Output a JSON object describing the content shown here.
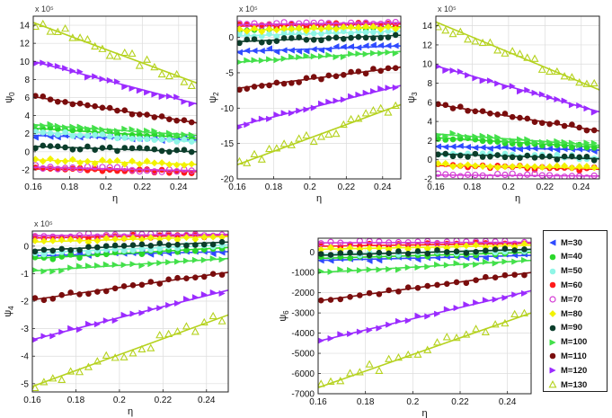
{
  "figure": {
    "panel_titles_note": "five panels of psi vs eta with fitted lines",
    "legend": [
      "M=30",
      "M=40",
      "M=50",
      "M=60",
      "M=70",
      "M=80",
      "M=90",
      "M=100",
      "M=110",
      "M=120",
      "M=130"
    ]
  },
  "series_style": [
    {
      "name": "M=30",
      "color": "#2f4bff",
      "marker": "tri-left"
    },
    {
      "name": "M=40",
      "color": "#2bd72b",
      "marker": "circle"
    },
    {
      "name": "M=50",
      "color": "#8ff5e6",
      "marker": "circle"
    },
    {
      "name": "M=60",
      "color": "#ff1a1a",
      "marker": "circle"
    },
    {
      "name": "M=70",
      "color": "#d43ad4",
      "marker": "open-circle"
    },
    {
      "name": "M=80",
      "color": "#f2f200",
      "marker": "diamond"
    },
    {
      "name": "M=90",
      "color": "#0b3d2b",
      "marker": "circle"
    },
    {
      "name": "M=100",
      "color": "#43e04a",
      "marker": "tri-right"
    },
    {
      "name": "M=110",
      "color": "#7a0d0d",
      "marker": "circle"
    },
    {
      "name": "M=120",
      "color": "#9b2bff",
      "marker": "tri-right"
    },
    {
      "name": "M=130",
      "color": "#b5d21e",
      "marker": "open-tri-up"
    }
  ],
  "chart_data": [
    {
      "type": "scatter",
      "id": "psi0",
      "ylabel": "ψ₀",
      "ylabel_base": "ψ",
      "ylabel_sub": "0",
      "xlabel": "η",
      "exponent_label": "x 10⁵",
      "xlim": [
        0.16,
        0.25
      ],
      "ylim": [
        -3,
        15
      ],
      "xticks": [
        0.16,
        0.18,
        0.2,
        0.22,
        0.24
      ],
      "xtick_labels": [
        "0.16",
        "0.18",
        "0.2",
        "0.22",
        "0.24"
      ],
      "yticks": [
        -2,
        0,
        2,
        4,
        6,
        8,
        10,
        12,
        14
      ],
      "ytick_labels": [
        "-2",
        "0",
        "2",
        "4",
        "6",
        "8",
        "10",
        "12",
        "14"
      ],
      "series": [
        {
          "name": "M=30",
          "fit": [
            1.8,
            1.3
          ]
        },
        {
          "name": "M=40",
          "fit": [
            2.6,
            1.5
          ]
        },
        {
          "name": "M=50",
          "fit": [
            2.2,
            1.1
          ]
        },
        {
          "name": "M=60",
          "fit": [
            -1.9,
            -2.2
          ]
        },
        {
          "name": "M=70",
          "fit": [
            -1.7,
            -2.1
          ]
        },
        {
          "name": "M=80",
          "fit": [
            -0.9,
            -1.4
          ]
        },
        {
          "name": "M=90",
          "fit": [
            0.6,
            0.0
          ]
        },
        {
          "name": "M=100",
          "fit": [
            3.0,
            1.8
          ]
        },
        {
          "name": "M=110",
          "fit": [
            6.1,
            3.2
          ]
        },
        {
          "name": "M=120",
          "fit": [
            10.0,
            5.3
          ]
        },
        {
          "name": "M=130",
          "fit": [
            14.3,
            7.6
          ]
        }
      ]
    },
    {
      "type": "scatter",
      "id": "psi2",
      "ylabel": "ψ₂",
      "ylabel_base": "ψ",
      "ylabel_sub": "2",
      "xlabel": "η",
      "exponent_label": "x 10⁵",
      "xlim": [
        0.16,
        0.25
      ],
      "ylim": [
        -20,
        3
      ],
      "xticks": [
        0.16,
        0.18,
        0.2,
        0.22,
        0.24
      ],
      "xtick_labels": [
        "0.16",
        "0.18",
        "0.2",
        "0.22",
        "0.24"
      ],
      "yticks": [
        -20,
        -15,
        -10,
        -5,
        0
      ],
      "ytick_labels": [
        "-20",
        "-15",
        "-10",
        "-5",
        "0"
      ],
      "series": [
        {
          "name": "M=30",
          "fit": [
            -2.0,
            -1.2
          ]
        },
        {
          "name": "M=40",
          "fit": [
            1.0,
            1.5
          ]
        },
        {
          "name": "M=50",
          "fit": [
            0.2,
            0.9
          ]
        },
        {
          "name": "M=60",
          "fit": [
            1.6,
            1.9
          ]
        },
        {
          "name": "M=70",
          "fit": [
            1.8,
            2.1
          ]
        },
        {
          "name": "M=80",
          "fit": [
            1.0,
            1.4
          ]
        },
        {
          "name": "M=90",
          "fit": [
            -0.6,
            0.3
          ]
        },
        {
          "name": "M=100",
          "fit": [
            -3.5,
            -2.0
          ]
        },
        {
          "name": "M=110",
          "fit": [
            -7.2,
            -4.2
          ]
        },
        {
          "name": "M=120",
          "fit": [
            -12.5,
            -6.8
          ]
        },
        {
          "name": "M=130",
          "fit": [
            -18.0,
            -9.5
          ]
        }
      ]
    },
    {
      "type": "scatter",
      "id": "psi3",
      "ylabel": "ψ₃",
      "ylabel_base": "ψ",
      "ylabel_sub": "3",
      "xlabel": "η",
      "exponent_label": "x 10⁵",
      "xlim": [
        0.16,
        0.25
      ],
      "ylim": [
        -2,
        15
      ],
      "xticks": [
        0.16,
        0.18,
        0.2,
        0.22,
        0.24
      ],
      "xtick_labels": [
        "0.16",
        "0.18",
        "0.2",
        "0.22",
        "0.24"
      ],
      "yticks": [
        -2,
        0,
        2,
        4,
        6,
        8,
        10,
        12,
        14
      ],
      "ytick_labels": [
        "-2",
        "0",
        "2",
        "4",
        "6",
        "8",
        "10",
        "12",
        "14"
      ],
      "series": [
        {
          "name": "M=30",
          "fit": [
            1.4,
            1.0
          ]
        },
        {
          "name": "M=40",
          "fit": [
            2.3,
            1.3
          ]
        },
        {
          "name": "M=50",
          "fit": [
            0.7,
            0.2
          ]
        },
        {
          "name": "M=60",
          "fit": [
            -0.6,
            -1.0
          ]
        },
        {
          "name": "M=70",
          "fit": [
            -1.6,
            -1.7
          ]
        },
        {
          "name": "M=80",
          "fit": [
            -0.5,
            -0.9
          ]
        },
        {
          "name": "M=90",
          "fit": [
            0.6,
            0.1
          ]
        },
        {
          "name": "M=100",
          "fit": [
            2.7,
            1.5
          ]
        },
        {
          "name": "M=110",
          "fit": [
            5.8,
            3.0
          ]
        },
        {
          "name": "M=120",
          "fit": [
            9.8,
            5.0
          ]
        },
        {
          "name": "M=130",
          "fit": [
            14.4,
            7.3
          ]
        }
      ]
    },
    {
      "type": "scatter",
      "id": "psi4",
      "ylabel": "ψ₄",
      "ylabel_base": "ψ",
      "ylabel_sub": "4",
      "xlabel": "η",
      "exponent_label": "x 10⁵",
      "xlim": [
        0.16,
        0.25
      ],
      "ylim": [
        -5.3,
        0.55
      ],
      "xticks": [
        0.16,
        0.18,
        0.2,
        0.22,
        0.24
      ],
      "xtick_labels": [
        "0.16",
        "0.18",
        "0.2",
        "0.22",
        "0.24"
      ],
      "yticks": [
        -5,
        -4,
        -3,
        -2,
        -1,
        0
      ],
      "ytick_labels": [
        "-5",
        "-4",
        "-3",
        "-2",
        "-1",
        "0"
      ],
      "series": [
        {
          "name": "M=30",
          "fit": [
            -0.35,
            -0.2
          ]
        },
        {
          "name": "M=40",
          "fit": [
            -0.45,
            -0.05
          ]
        },
        {
          "name": "M=50",
          "fit": [
            -0.25,
            0.05
          ]
        },
        {
          "name": "M=60",
          "fit": [
            0.3,
            0.4
          ]
        },
        {
          "name": "M=70",
          "fit": [
            0.38,
            0.43
          ]
        },
        {
          "name": "M=80",
          "fit": [
            0.15,
            0.35
          ]
        },
        {
          "name": "M=90",
          "fit": [
            -0.15,
            0.15
          ]
        },
        {
          "name": "M=100",
          "fit": [
            -0.9,
            -0.45
          ]
        },
        {
          "name": "M=110",
          "fit": [
            -1.95,
            -0.95
          ]
        },
        {
          "name": "M=120",
          "fit": [
            -3.4,
            -1.6
          ]
        },
        {
          "name": "M=130",
          "fit": [
            -5.1,
            -2.5
          ]
        }
      ]
    },
    {
      "type": "scatter",
      "id": "psi6",
      "ylabel": "ψ₆",
      "ylabel_base": "ψ",
      "ylabel_sub": "6",
      "xlabel": "η",
      "exponent_label": "",
      "xlim": [
        0.16,
        0.25
      ],
      "ylim": [
        -7000,
        700
      ],
      "xticks": [
        0.16,
        0.18,
        0.2,
        0.22,
        0.24
      ],
      "xtick_labels": [
        "0.16",
        "0.18",
        "0.2",
        "0.22",
        "0.24"
      ],
      "yticks": [
        -7000,
        -6000,
        -5000,
        -4000,
        -3000,
        -2000,
        -1000,
        0
      ],
      "ytick_labels": [
        "-7000",
        "-6000",
        "-5000",
        "-4000",
        "-3000",
        "-2000",
        "-1000",
        "0"
      ],
      "series": [
        {
          "name": "M=30",
          "fit": [
            -400,
            -150
          ]
        },
        {
          "name": "M=40",
          "fit": [
            -300,
            0
          ]
        },
        {
          "name": "M=50",
          "fit": [
            -100,
            100
          ]
        },
        {
          "name": "M=60",
          "fit": [
            300,
            450
          ]
        },
        {
          "name": "M=70",
          "fit": [
            470,
            500
          ]
        },
        {
          "name": "M=80",
          "fit": [
            150,
            350
          ]
        },
        {
          "name": "M=90",
          "fit": [
            -150,
            150
          ]
        },
        {
          "name": "M=100",
          "fit": [
            -1000,
            -400
          ]
        },
        {
          "name": "M=110",
          "fit": [
            -2400,
            -1000
          ]
        },
        {
          "name": "M=120",
          "fit": [
            -4400,
            -1900
          ]
        },
        {
          "name": "M=130",
          "fit": [
            -6700,
            -3000
          ]
        }
      ]
    }
  ]
}
